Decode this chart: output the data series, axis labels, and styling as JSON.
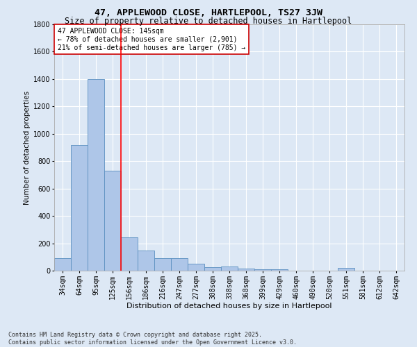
{
  "title": "47, APPLEWOOD CLOSE, HARTLEPOOL, TS27 3JW",
  "subtitle": "Size of property relative to detached houses in Hartlepool",
  "xlabel": "Distribution of detached houses by size in Hartlepool",
  "ylabel": "Number of detached properties",
  "categories": [
    "34sqm",
    "64sqm",
    "95sqm",
    "125sqm",
    "156sqm",
    "186sqm",
    "216sqm",
    "247sqm",
    "277sqm",
    "308sqm",
    "338sqm",
    "368sqm",
    "399sqm",
    "429sqm",
    "460sqm",
    "490sqm",
    "520sqm",
    "551sqm",
    "581sqm",
    "612sqm",
    "642sqm"
  ],
  "values": [
    90,
    920,
    1400,
    730,
    245,
    145,
    90,
    90,
    50,
    25,
    30,
    15,
    10,
    8,
    0,
    0,
    0,
    20,
    0,
    0,
    0
  ],
  "bar_color": "#aec6e8",
  "bar_edge_color": "#5a8fc0",
  "red_line_index": 3.5,
  "ylim": [
    0,
    1800
  ],
  "yticks": [
    0,
    200,
    400,
    600,
    800,
    1000,
    1200,
    1400,
    1600,
    1800
  ],
  "annotation_text": "47 APPLEWOOD CLOSE: 145sqm\n← 78% of detached houses are smaller (2,901)\n21% of semi-detached houses are larger (785) →",
  "annotation_box_color": "#ffffff",
  "annotation_box_edge": "#cc0000",
  "footnote": "Contains HM Land Registry data © Crown copyright and database right 2025.\nContains public sector information licensed under the Open Government Licence v3.0.",
  "background_color": "#dde8f5",
  "grid_color": "#ffffff",
  "title_fontsize": 9.5,
  "subtitle_fontsize": 8.5,
  "xlabel_fontsize": 8,
  "ylabel_fontsize": 7.5,
  "tick_fontsize": 7,
  "annotation_fontsize": 7,
  "footnote_fontsize": 6
}
